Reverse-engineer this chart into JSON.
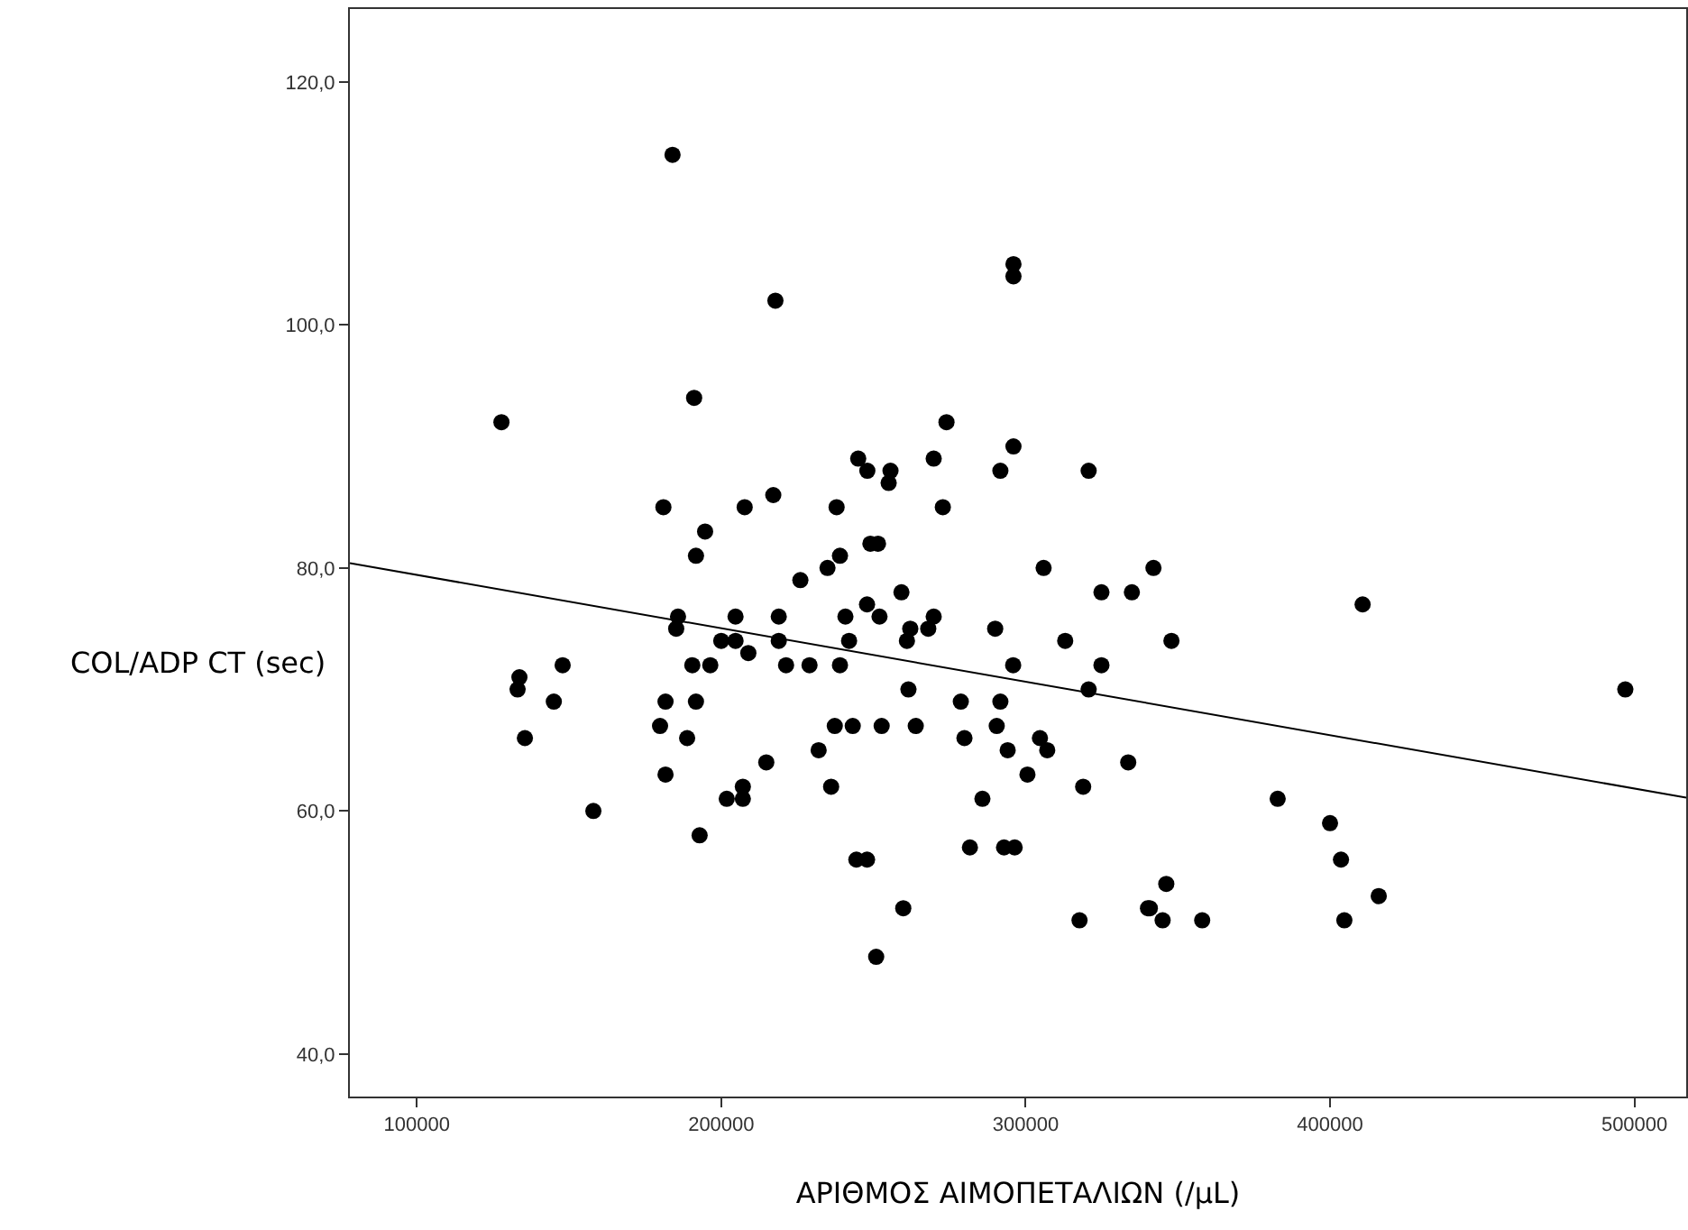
{
  "chart_data": {
    "type": "scatter",
    "xlabel": "ΑΡΙΘΜΟΣ ΑΙΜΟΠΕΤΑΛΙΩΝ (/μL)",
    "ylabel": "COL/ADP CT (sec)",
    "xlim": [
      78000,
      517000
    ],
    "ylim": [
      36.5,
      126
    ],
    "xticks": [
      100000,
      200000,
      300000,
      400000,
      500000
    ],
    "yticks": [
      {
        "value": 40,
        "label": "40,0"
      },
      {
        "value": 60,
        "label": "60,0"
      },
      {
        "value": 80,
        "label": "80,0"
      },
      {
        "value": 100,
        "label": "100,0"
      },
      {
        "value": 120,
        "label": "120,0"
      }
    ],
    "grid": false,
    "marker": "circle",
    "series": [
      {
        "type": "scatter",
        "color": "#000000",
        "x": [
          184000,
          296000,
          296000,
          217800,
          127800,
          191100,
          274000,
          245000,
          248000,
          255600,
          255000,
          269800,
          296000,
          291700,
          320700,
          181000,
          207700,
          217100,
          237900,
          272800,
          194700,
          191700,
          249000,
          251500,
          239000,
          234900,
          226000,
          305900,
          342000,
          259200,
          324900,
          334900,
          185800,
          185200,
          204700,
          218900,
          240800,
          247900,
          252000,
          269800,
          268000,
          262100,
          261000,
          290000,
          313000,
          242000,
          200000,
          204700,
          208900,
          218900,
          190500,
          196400,
          221300,
          229000,
          239000,
          295900,
          324900,
          133700,
          133100,
          147900,
          145000,
          135500,
          181700,
          191700,
          261500,
          320700,
          278700,
          291700,
          179900,
          188800,
          181700,
          237300,
          243200,
          252700,
          263900,
          232000,
          279900,
          290500,
          294100,
          304700,
          307100,
          214800,
          300600,
          333700,
          236100,
          318900,
          158000,
          201800,
          207100,
          207100,
          285800,
          192900,
          281700,
          292900,
          296400,
          244400,
          247900,
          259800,
          317700,
          340200,
          250900,
          410700,
          347900,
          497000,
          382800,
          400000,
          403600,
          346200,
          416000,
          340800,
          345000,
          358000,
          404700
        ],
        "values": [
          114,
          105,
          104,
          102,
          92,
          94,
          92,
          89,
          88,
          88,
          87,
          89,
          90,
          88,
          88,
          85,
          85,
          86,
          85,
          85,
          83,
          81,
          82,
          82,
          81,
          80,
          79,
          80,
          80,
          78,
          78,
          78,
          76,
          75,
          76,
          76,
          76,
          77,
          76,
          76,
          75,
          75,
          74,
          75,
          74,
          74,
          74,
          74,
          73,
          74,
          72,
          72,
          72,
          72,
          72,
          72,
          72,
          71,
          70,
          72,
          69,
          66,
          69,
          69,
          70,
          70,
          69,
          69,
          67,
          66,
          63,
          67,
          67,
          67,
          67,
          65,
          66,
          67,
          65,
          66,
          65,
          64,
          63,
          64,
          62,
          62,
          60,
          61,
          62,
          61,
          61,
          58,
          57,
          57,
          57,
          56,
          56,
          52,
          51,
          52,
          48,
          77,
          74,
          70,
          61,
          59,
          56,
          54,
          53,
          52,
          51,
          51,
          51
        ]
      },
      {
        "type": "line",
        "color": "#000000",
        "marker": "none",
        "line_style": "solid",
        "x": [
          78000,
          517000
        ],
        "values": [
          80.4,
          61.1
        ]
      }
    ]
  }
}
